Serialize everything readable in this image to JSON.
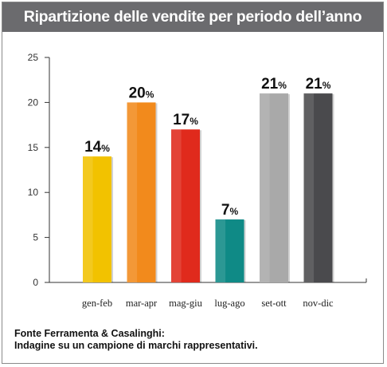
{
  "header": {
    "title": "Ripartizione delle vendite per periodo dell’anno"
  },
  "chart_data": {
    "type": "bar",
    "title": "Ripartizione delle vendite per periodo dell’anno",
    "categories": [
      "gen-feb",
      "mar-apr",
      "mag-giu",
      "lug-ago",
      "set-ott",
      "nov-dic"
    ],
    "values": [
      14,
      20,
      17,
      7,
      21,
      21
    ],
    "data_labels": [
      "14%",
      "20%",
      "17%",
      "7%",
      "21%",
      "21%"
    ],
    "value_suffix": "%",
    "colors": [
      "#f2c200",
      "#f28a1c",
      "#e02a1c",
      "#0f8a86",
      "#a9a9a9",
      "#4a4a4d"
    ],
    "yticks": [
      "0",
      "5",
      "10",
      "15",
      "20",
      "25"
    ],
    "ylim": [
      0,
      25
    ],
    "xlabel": "",
    "ylabel": "",
    "grid": false,
    "legend": "none"
  },
  "footer": {
    "source_line1": "Fonte Ferramenta & Casalinghi:",
    "source_line2": "Indagine su un campione di marchi rappresentativi."
  }
}
